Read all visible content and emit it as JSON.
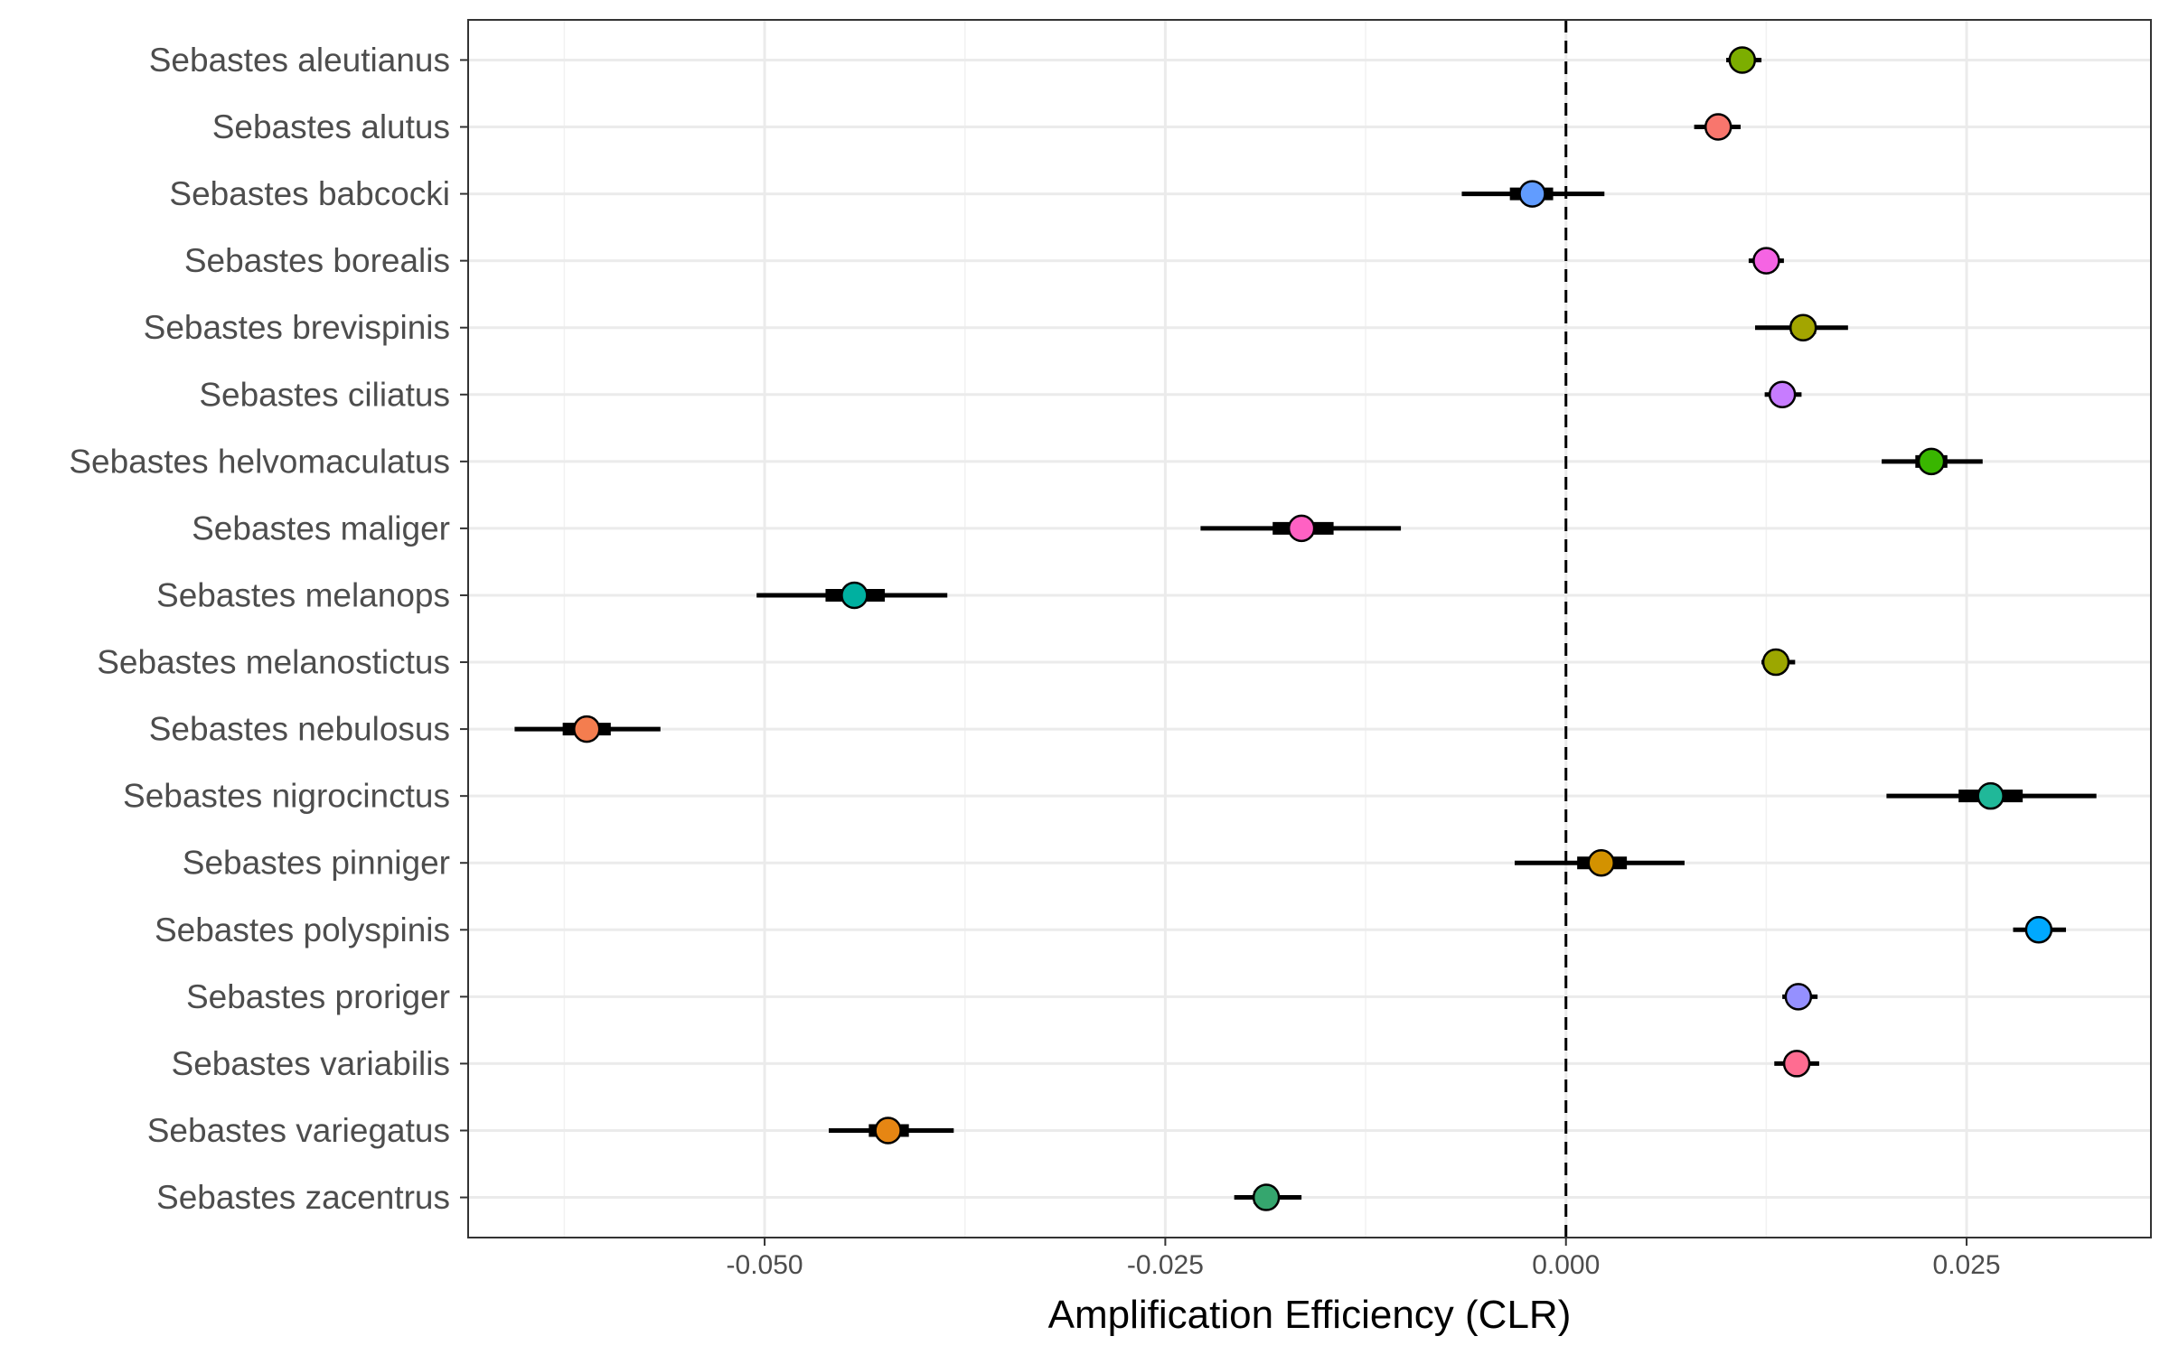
{
  "chart_data": {
    "type": "scatter",
    "subtype": "forest-plot",
    "title": "",
    "xlabel": "Amplification Efficiency (CLR)",
    "ylabel": "",
    "xlim": [
      -0.0685,
      0.0365
    ],
    "xticks": [
      -0.05,
      -0.025,
      0.0,
      0.025
    ],
    "xtick_labels": [
      "-0.050",
      "-0.025",
      "0.000",
      "0.025"
    ],
    "reference_line": 0.0,
    "grid": true,
    "legend": "none",
    "categories": [
      "Sebastes aleutianus",
      "Sebastes alutus",
      "Sebastes babcocki",
      "Sebastes borealis",
      "Sebastes brevispinis",
      "Sebastes ciliatus",
      "Sebastes helvomaculatus",
      "Sebastes maliger",
      "Sebastes melanops",
      "Sebastes melanostictus",
      "Sebastes nebulosus",
      "Sebastes nigrocinctus",
      "Sebastes pinniger",
      "Sebastes polyspinis",
      "Sebastes proriger",
      "Sebastes variabilis",
      "Sebastes variegatus",
      "Sebastes zacentrus"
    ],
    "series": [
      {
        "name": "Sebastes aleutianus",
        "value": 0.011,
        "ci95": [
          0.01,
          0.0122
        ],
        "ci50": [
          0.0104,
          0.0116
        ],
        "color": "#7CAE00"
      },
      {
        "name": "Sebastes alutus",
        "value": 0.0095,
        "ci95": [
          0.008,
          0.0109
        ],
        "ci50": [
          0.0089,
          0.0101
        ],
        "color": "#F8766D"
      },
      {
        "name": "Sebastes babcocki",
        "value": -0.0021,
        "ci95": [
          -0.0065,
          0.0024
        ],
        "ci50": [
          -0.0035,
          -0.0008
        ],
        "color": "#619CFF"
      },
      {
        "name": "Sebastes borealis",
        "value": 0.0125,
        "ci95": [
          0.0114,
          0.0136
        ],
        "ci50": [
          0.012,
          0.013
        ],
        "color": "#F564E3"
      },
      {
        "name": "Sebastes brevispinis",
        "value": 0.0148,
        "ci95": [
          0.0118,
          0.0176
        ],
        "ci50": [
          0.014,
          0.0156
        ],
        "color": "#A3A500"
      },
      {
        "name": "Sebastes ciliatus",
        "value": 0.0135,
        "ci95": [
          0.0124,
          0.0147
        ],
        "ci50": [
          0.013,
          0.014
        ],
        "color": "#C77CFF"
      },
      {
        "name": "Sebastes helvomaculatus",
        "value": 0.0228,
        "ci95": [
          0.0197,
          0.026
        ],
        "ci50": [
          0.0218,
          0.0238
        ],
        "color": "#39B600"
      },
      {
        "name": "Sebastes maliger",
        "value": -0.0165,
        "ci95": [
          -0.0228,
          -0.0103
        ],
        "ci50": [
          -0.0183,
          -0.0145
        ],
        "color": "#FF61C3"
      },
      {
        "name": "Sebastes melanops",
        "value": -0.0444,
        "ci95": [
          -0.0505,
          -0.0386
        ],
        "ci50": [
          -0.0462,
          -0.0425
        ],
        "color": "#00B0A0"
      },
      {
        "name": "Sebastes melanostictus",
        "value": 0.0131,
        "ci95": [
          0.0122,
          0.0143
        ],
        "ci50": [
          0.0127,
          0.0137
        ],
        "color": "#9CA700"
      },
      {
        "name": "Sebastes nebulosus",
        "value": -0.0611,
        "ci95": [
          -0.0656,
          -0.0565
        ],
        "ci50": [
          -0.0626,
          -0.0596
        ],
        "color": "#F47D4F"
      },
      {
        "name": "Sebastes nigrocinctus",
        "value": 0.0265,
        "ci95": [
          0.02,
          0.0331
        ],
        "ci50": [
          0.0245,
          0.0285
        ],
        "color": "#20B899"
      },
      {
        "name": "Sebastes pinniger",
        "value": 0.0022,
        "ci95": [
          -0.0032,
          0.0074
        ],
        "ci50": [
          0.0007,
          0.0038
        ],
        "color": "#D39200"
      },
      {
        "name": "Sebastes polyspinis",
        "value": 0.0295,
        "ci95": [
          0.0279,
          0.0312
        ],
        "ci50": [
          0.0288,
          0.0302
        ],
        "color": "#00A9FF"
      },
      {
        "name": "Sebastes proriger",
        "value": 0.0145,
        "ci95": [
          0.0135,
          0.0157
        ],
        "ci50": [
          0.0139,
          0.0151
        ],
        "color": "#9590FF"
      },
      {
        "name": "Sebastes variabilis",
        "value": 0.0144,
        "ci95": [
          0.013,
          0.0158
        ],
        "ci50": [
          0.0138,
          0.015
        ],
        "color": "#FF6C91"
      },
      {
        "name": "Sebastes variegatus",
        "value": -0.0423,
        "ci95": [
          -0.046,
          -0.0382
        ],
        "ci50": [
          -0.0435,
          -0.041
        ],
        "color": "#E68613"
      },
      {
        "name": "Sebastes zacentrus",
        "value": -0.0187,
        "ci95": [
          -0.0207,
          -0.0165
        ],
        "ci50": [
          -0.0195,
          -0.018
        ],
        "color": "#35A66E"
      }
    ]
  }
}
